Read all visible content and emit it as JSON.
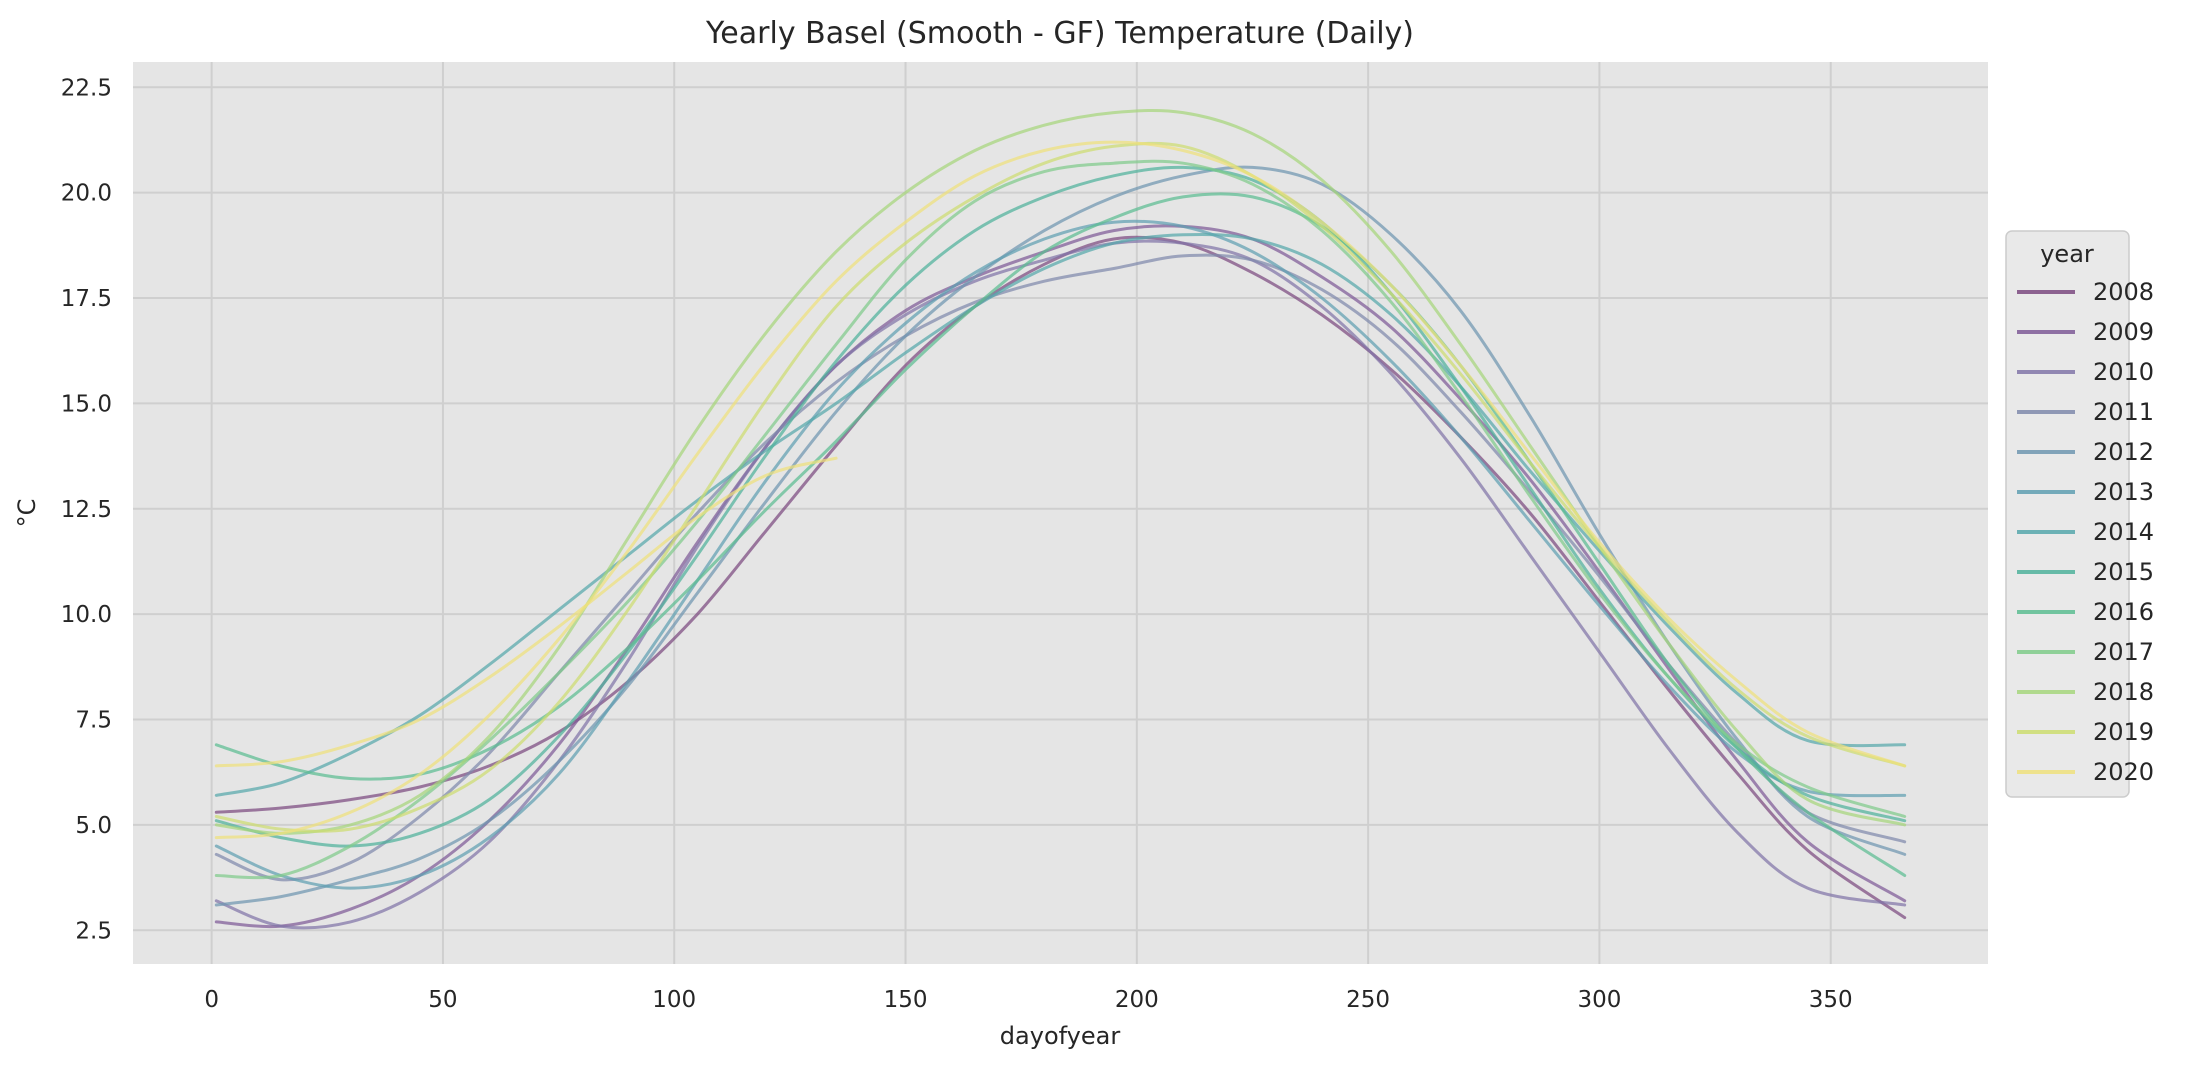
{
  "chart_data": {
    "type": "line",
    "title": "Yearly Basel (Smooth - GF) Temperature (Daily)",
    "xlabel": "dayofyear",
    "ylabel": "°C",
    "xlim": [
      -17,
      384
    ],
    "ylim": [
      1.7,
      23.1
    ],
    "x_ticks": [
      0,
      50,
      100,
      150,
      200,
      250,
      300,
      350
    ],
    "y_ticks": [
      2.5,
      5.0,
      7.5,
      10.0,
      12.5,
      15.0,
      17.5,
      20.0,
      22.5
    ],
    "grid": true,
    "legend": {
      "title": "year",
      "placement": "right-center"
    },
    "x": [
      1,
      15,
      30,
      45,
      60,
      75,
      90,
      105,
      120,
      135,
      150,
      165,
      180,
      195,
      210,
      225,
      240,
      255,
      270,
      285,
      300,
      315,
      330,
      345,
      366
    ],
    "series": [
      {
        "name": "2008",
        "color": "#7b4a80",
        "values": [
          5.3,
          5.4,
          5.6,
          5.9,
          6.4,
          7.2,
          8.4,
          10.0,
          12.0,
          14.0,
          15.9,
          17.3,
          18.3,
          18.9,
          18.8,
          18.1,
          17.1,
          15.8,
          14.2,
          12.4,
          10.3,
          8.2,
          6.2,
          4.4,
          2.8
        ]
      },
      {
        "name": "2009",
        "color": "#7e5a97",
        "values": [
          2.7,
          2.6,
          3.0,
          3.8,
          5.1,
          6.9,
          9.2,
          11.7,
          14.0,
          15.9,
          17.2,
          18.0,
          18.6,
          19.1,
          19.2,
          18.9,
          18.0,
          16.8,
          15.1,
          13.2,
          11.0,
          8.7,
          6.5,
          4.6,
          3.2
        ]
      },
      {
        "name": "2010",
        "color": "#8175a8",
        "values": [
          3.2,
          2.6,
          2.7,
          3.4,
          4.6,
          6.5,
          8.9,
          11.6,
          14.0,
          15.9,
          17.1,
          17.9,
          18.4,
          18.8,
          18.8,
          18.4,
          17.3,
          15.7,
          13.7,
          11.4,
          9.1,
          6.8,
          4.8,
          3.5,
          3.1
        ]
      },
      {
        "name": "2011",
        "color": "#7f89ac",
        "values": [
          4.3,
          3.7,
          4.1,
          5.2,
          6.7,
          8.6,
          10.5,
          12.4,
          14.1,
          15.5,
          16.6,
          17.4,
          17.9,
          18.2,
          18.5,
          18.4,
          17.7,
          16.5,
          14.8,
          12.9,
          10.9,
          8.8,
          6.9,
          5.3,
          4.6
        ]
      },
      {
        "name": "2012",
        "color": "#6f96b0",
        "values": [
          3.1,
          3.3,
          3.7,
          4.2,
          5.1,
          6.5,
          8.3,
          10.5,
          12.7,
          14.8,
          16.6,
          18.0,
          19.1,
          19.9,
          20.4,
          20.6,
          20.2,
          19.0,
          17.2,
          14.7,
          11.9,
          9.3,
          7.0,
          5.2,
          4.3
        ]
      },
      {
        "name": "2013",
        "color": "#5f9fb1",
        "values": [
          4.5,
          3.8,
          3.5,
          3.8,
          4.7,
          6.2,
          8.4,
          10.8,
          13.2,
          15.3,
          16.9,
          18.1,
          18.9,
          19.3,
          19.2,
          18.6,
          17.5,
          16.0,
          14.2,
          12.2,
          10.2,
          8.3,
          6.7,
          5.8,
          5.7
        ]
      },
      {
        "name": "2014",
        "color": "#56a7ab",
        "values": [
          5.7,
          6.0,
          6.7,
          7.6,
          8.8,
          10.1,
          11.4,
          12.7,
          13.9,
          15.0,
          16.2,
          17.3,
          18.2,
          18.8,
          19.0,
          18.9,
          18.3,
          17.1,
          15.4,
          13.4,
          11.5,
          9.7,
          8.1,
          7.0,
          6.9
        ]
      },
      {
        "name": "2015",
        "color": "#4fb19b",
        "values": [
          5.1,
          4.7,
          4.5,
          4.8,
          5.6,
          7.1,
          9.1,
          11.4,
          13.8,
          16.0,
          17.8,
          19.1,
          19.9,
          20.4,
          20.6,
          20.3,
          19.3,
          17.6,
          15.4,
          13.0,
          10.6,
          8.5,
          6.8,
          5.7,
          5.1
        ]
      },
      {
        "name": "2016",
        "color": "#5cbd92",
        "values": [
          6.9,
          6.4,
          6.1,
          6.2,
          6.8,
          7.8,
          9.2,
          10.8,
          12.5,
          14.1,
          15.8,
          17.3,
          18.6,
          19.4,
          19.9,
          19.9,
          19.2,
          17.8,
          15.9,
          13.6,
          11.2,
          8.8,
          6.8,
          5.3,
          3.8
        ]
      },
      {
        "name": "2017",
        "color": "#7fcb8a",
        "values": [
          3.8,
          3.8,
          4.5,
          5.6,
          7.0,
          8.6,
          10.3,
          12.2,
          14.3,
          16.4,
          18.4,
          19.8,
          20.5,
          20.7,
          20.7,
          20.2,
          19.1,
          17.4,
          15.2,
          12.8,
          10.5,
          8.5,
          6.9,
          5.9,
          5.2
        ]
      },
      {
        "name": "2018",
        "color": "#a6d67c",
        "values": [
          5.0,
          4.8,
          5.0,
          5.7,
          7.1,
          9.2,
          11.8,
          14.4,
          16.7,
          18.6,
          20.0,
          21.0,
          21.6,
          21.9,
          21.9,
          21.4,
          20.3,
          18.6,
          16.4,
          14.0,
          11.6,
          9.3,
          7.2,
          5.6,
          5.0
        ]
      },
      {
        "name": "2019",
        "color": "#cddd70",
        "values": [
          5.2,
          4.9,
          4.9,
          5.4,
          6.3,
          7.9,
          10.1,
          12.6,
          15.1,
          17.3,
          18.8,
          19.9,
          20.7,
          21.1,
          21.1,
          20.4,
          19.2,
          17.6,
          15.7,
          13.6,
          11.6,
          9.8,
          8.2,
          7.1,
          6.4
        ]
      },
      {
        "name": "2020",
        "color": "#eee07c",
        "values": [
          6.4,
          6.5,
          6.9,
          7.5,
          8.5,
          9.7,
          11.0,
          12.3,
          13.3,
          13.7,
          null,
          null,
          null,
          null,
          null,
          null,
          null,
          null,
          null,
          null,
          null,
          null,
          null,
          null,
          null
        ]
      },
      {
        "name": "2020",
        "color": "#eee07c",
        "values": [
          4.7,
          4.8,
          5.3,
          6.2,
          7.6,
          9.4,
          11.5,
          13.8,
          16.0,
          17.9,
          19.3,
          20.4,
          21.0,
          21.2,
          21.0,
          20.4,
          19.3,
          17.8,
          15.9,
          13.8,
          11.7,
          9.9,
          8.4,
          7.2,
          6.4
        ]
      }
    ]
  }
}
